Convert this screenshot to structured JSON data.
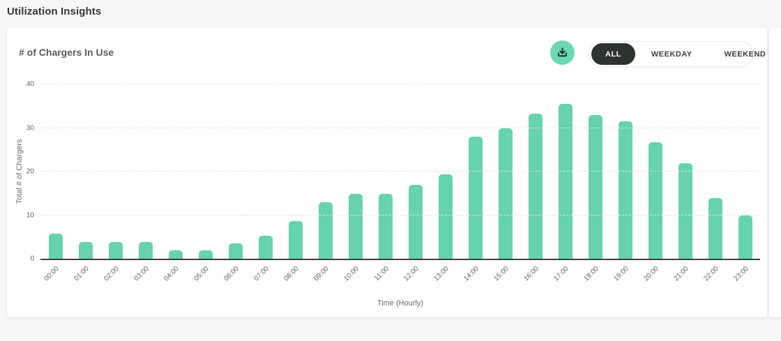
{
  "page": {
    "title": "Utilization Insights"
  },
  "card": {
    "title": "# of Chargers In Use",
    "toolbar": {
      "download_icon": "download-icon",
      "segments": [
        {
          "label": "ALL",
          "selected": true
        },
        {
          "label": "WEEKDAY",
          "selected": false
        },
        {
          "label": "WEEKEND",
          "selected": false
        }
      ]
    }
  },
  "chart_data": {
    "type": "bar",
    "title": "# of Chargers In Use",
    "xlabel": "Time (Hourly)",
    "ylabel": "Total # of Chargers",
    "ylim": [
      0,
      40
    ],
    "yticks": [
      0,
      10,
      20,
      30,
      40
    ],
    "grid": "horizontal-dashed",
    "legend": "none",
    "bar_color": "#66d2ae",
    "categories": [
      "00:00",
      "01:00",
      "02:00",
      "03:00",
      "04:00",
      "05:00",
      "06:00",
      "07:00",
      "08:00",
      "09:00",
      "10:00",
      "11:00",
      "12:00",
      "13:00",
      "14:00",
      "15:00",
      "16:00",
      "17:00",
      "18:00",
      "19:00",
      "20:00",
      "21:00",
      "22:00",
      "23:00"
    ],
    "values": [
      5.7,
      3.8,
      3.8,
      3.8,
      1.9,
      1.9,
      3.5,
      5.3,
      8.7,
      12.9,
      14.9,
      14.9,
      16.9,
      19.4,
      28.0,
      29.9,
      33.3,
      35.5,
      33.0,
      31.5,
      26.8,
      22.0,
      14.0,
      9.9
    ]
  },
  "colors": {
    "bar": "#66d2ae",
    "download_button": "#6cd8b3",
    "selected_pill": "#2d332f",
    "card_background": "#ffffff",
    "page_background": "#f7f7f7"
  }
}
